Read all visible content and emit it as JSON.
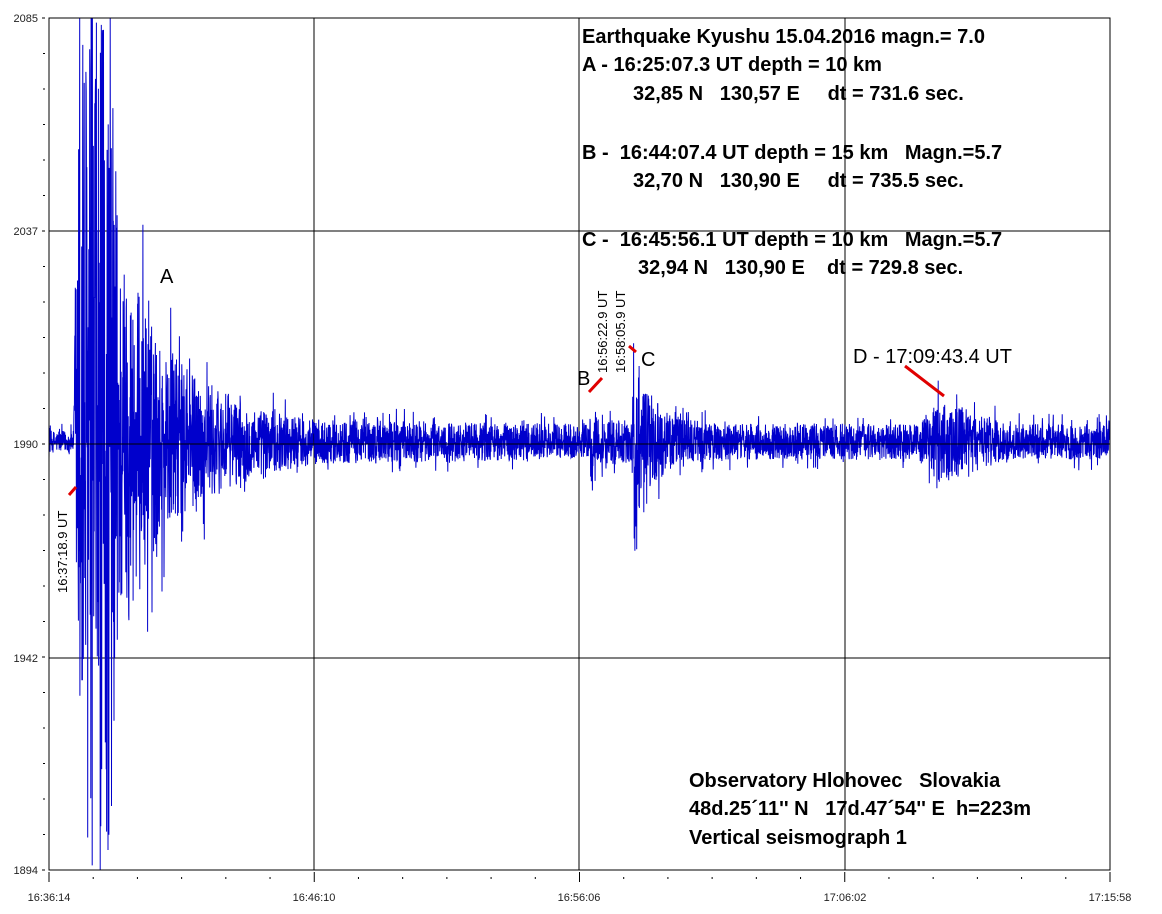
{
  "chart_data": {
    "type": "line",
    "title": "Earthquake Kyushu 15.04.2016 magn.= 7.0",
    "xlabel": "",
    "ylabel": "",
    "x_range_seconds": [
      0,
      2384
    ],
    "x_tick_labels": [
      "16:36:14",
      "16:46:10",
      "16:56:06",
      "17:06:02",
      "17:15:58"
    ],
    "ylim": [
      1894,
      2085
    ],
    "y_ticks": [
      1894,
      1942,
      1990,
      2037,
      2085
    ],
    "grid": true,
    "series": [
      {
        "name": "Vertical seismograph 1",
        "color": "#0000cc",
        "baseline": 1990,
        "amplitude_envelope": {
          "t_seconds": [
            0,
            55,
            60,
            70,
            135,
            160,
            250,
            330,
            450,
            600,
            1200,
            1215,
            1218,
            1232,
            1310,
            1315,
            1330,
            1400,
            1500,
            1950,
            2000,
            2080,
            2150,
            2384
          ],
          "amplitude": [
            2.5,
            2.5,
            40,
            95,
            95,
            45,
            22,
            15,
            8,
            5,
            4,
            4,
            11,
            5,
            5,
            34,
            12,
            6,
            4,
            4,
            9,
            7,
            4,
            4
          ]
        }
      }
    ],
    "annotations": {
      "info_lines": [
        "Earthquake Kyushu 15.04.2016 magn.= 7.0",
        "A - 16:25:07.3 UT depth = 10 km",
        "32,85 N   130,57 E     dt = 731.6 sec.",
        "B -  16:44:07.4 UT depth = 15 km   Magn.=5.7",
        "32,70 N   130,90 E     dt = 735.5 sec.",
        "C -  16:45:56.1 UT depth = 10 km   Magn.=5.7",
        "32,94 N   130,90 E    dt = 729.8 sec."
      ],
      "observatory_lines": [
        "Observatory Hlohovec   Slovakia",
        "48d.25´11'' N   17d.47´54'' E  h=223m",
        "Vertical seismograph 1"
      ],
      "event_letters": {
        "A": "A",
        "B": "B",
        "C": "C",
        "D": "D - 17:09:43.4 UT"
      },
      "arrival_times": {
        "A": "16:37:18.9 UT",
        "B": "16:56:22.9 UT",
        "C": "16:58:05.9 UT"
      },
      "marker_color": "#e00000"
    }
  }
}
